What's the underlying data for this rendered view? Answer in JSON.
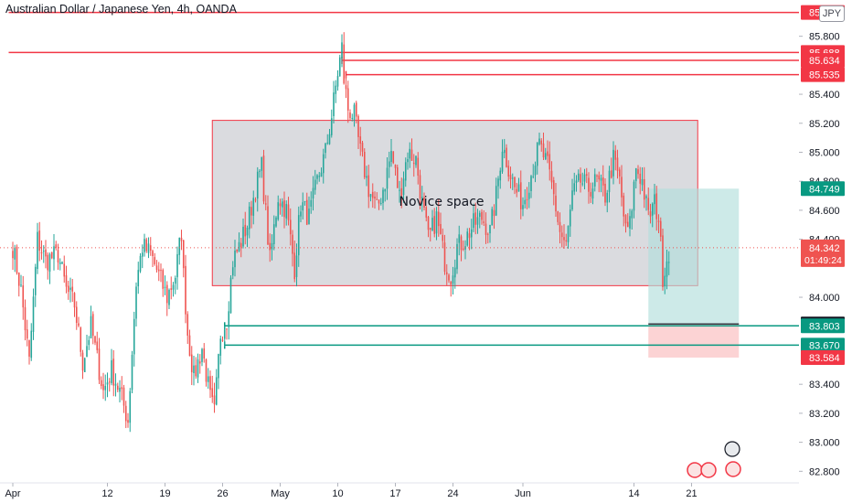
{
  "header": {
    "title": "Australian Dollar / Japanese Yen, 4h, OANDA",
    "currency": "JPY"
  },
  "colors": {
    "up": "#26a69a",
    "down": "#ef5350",
    "resistance": "#f23645",
    "support": "#089981",
    "zone_fill": "#d6d7dc",
    "zone_border": "#f23645",
    "target_fill": "#b2dfdb",
    "stop_fill": "#fccbcd",
    "last_price": "#ef5350"
  },
  "annotations": {
    "zone_label": "Novice space"
  },
  "countdown": "01:49:24",
  "chart_data": {
    "type": "candlestick",
    "instrument": "Australian Dollar / Japanese Yen",
    "timeframe": "4h",
    "source": "OANDA",
    "ylim": [
      82.72,
      86.05
    ],
    "y_ticks": [
      {
        "v": 85.8,
        "label": "85.800"
      },
      {
        "v": 85.4,
        "label": "85.400"
      },
      {
        "v": 85.2,
        "label": "85.200"
      },
      {
        "v": 85.0,
        "label": "85.000"
      },
      {
        "v": 84.8,
        "label": "84.800"
      },
      {
        "v": 84.6,
        "label": "84.600"
      },
      {
        "v": 84.4,
        "label": "84.400"
      },
      {
        "v": 84.0,
        "label": "84.000"
      },
      {
        "v": 83.4,
        "label": "83.400"
      },
      {
        "v": 83.2,
        "label": "83.200"
      },
      {
        "v": 83.0,
        "label": "83.000"
      },
      {
        "v": 82.8,
        "label": "82.800"
      }
    ],
    "x_ticks": [
      {
        "i": 0,
        "label": "Apr"
      },
      {
        "i": 46,
        "label": "12"
      },
      {
        "i": 74,
        "label": "19"
      },
      {
        "i": 102,
        "label": "26"
      },
      {
        "i": 130,
        "label": "May"
      },
      {
        "i": 158,
        "label": "10"
      },
      {
        "i": 186,
        "label": "17"
      },
      {
        "i": 214,
        "label": "24"
      },
      {
        "i": 248,
        "label": "Jun"
      },
      {
        "i": 302,
        "label": "14"
      },
      {
        "i": 330,
        "label": "21"
      }
    ],
    "price_labels": [
      {
        "v": 85.964,
        "label": "85.964",
        "kind": "resistance"
      },
      {
        "v": 85.688,
        "label": "85.688",
        "kind": "resistance"
      },
      {
        "v": 85.634,
        "label": "85.634",
        "kind": "resistance"
      },
      {
        "v": 85.535,
        "label": "85.535",
        "kind": "resistance"
      },
      {
        "v": 84.749,
        "label": "84.749",
        "kind": "target"
      },
      {
        "v": 84.342,
        "label": "84.342",
        "kind": "last"
      },
      {
        "v": 83.816,
        "label": "83.816",
        "kind": "entry"
      },
      {
        "v": 83.803,
        "label": "83.803",
        "kind": "support"
      },
      {
        "v": 83.67,
        "label": "83.670",
        "kind": "support"
      },
      {
        "v": 83.584,
        "label": "83.584",
        "kind": "stop"
      }
    ],
    "horizontal_lines": [
      {
        "v": 85.964,
        "from_i": -2,
        "kind": "resistance"
      },
      {
        "v": 85.688,
        "from_i": -2,
        "kind": "resistance"
      },
      {
        "v": 85.634,
        "from_i": 160,
        "kind": "resistance"
      },
      {
        "v": 85.535,
        "from_i": 162,
        "kind": "resistance"
      },
      {
        "v": 83.803,
        "from_i": 103,
        "kind": "support"
      },
      {
        "v": 83.67,
        "from_i": 103,
        "kind": "support"
      }
    ],
    "zone": {
      "from_i": 97,
      "to_i": 333,
      "top": 85.22,
      "bottom": 84.08
    },
    "position": {
      "from_i": 309,
      "to_i": 353,
      "entry": 83.816,
      "target": 84.749,
      "stop": 83.584
    },
    "last_price": 84.342,
    "anchors": [
      {
        "i": 0,
        "v": 84.35
      },
      {
        "i": 4,
        "v": 84.05
      },
      {
        "i": 8,
        "v": 83.55
      },
      {
        "i": 12,
        "v": 84.4
      },
      {
        "i": 16,
        "v": 84.25
      },
      {
        "i": 22,
        "v": 84.3
      },
      {
        "i": 26,
        "v": 84.05
      },
      {
        "i": 30,
        "v": 83.95
      },
      {
        "i": 34,
        "v": 83.55
      },
      {
        "i": 38,
        "v": 83.8
      },
      {
        "i": 44,
        "v": 83.35
      },
      {
        "i": 48,
        "v": 83.5
      },
      {
        "i": 52,
        "v": 83.35
      },
      {
        "i": 56,
        "v": 83.15
      },
      {
        "i": 60,
        "v": 84.1
      },
      {
        "i": 63,
        "v": 84.35
      },
      {
        "i": 67,
        "v": 84.3
      },
      {
        "i": 71,
        "v": 84.15
      },
      {
        "i": 75,
        "v": 84.0
      },
      {
        "i": 79,
        "v": 84.15
      },
      {
        "i": 82,
        "v": 84.45
      },
      {
        "i": 83,
        "v": 84.15
      },
      {
        "i": 85,
        "v": 83.75
      },
      {
        "i": 88,
        "v": 83.45
      },
      {
        "i": 92,
        "v": 83.65
      },
      {
        "i": 96,
        "v": 83.3
      },
      {
        "i": 98,
        "v": 83.2
      },
      {
        "i": 101,
        "v": 83.75
      },
      {
        "i": 104,
        "v": 83.85
      },
      {
        "i": 107,
        "v": 84.25
      },
      {
        "i": 110,
        "v": 84.35
      },
      {
        "i": 114,
        "v": 84.5
      },
      {
        "i": 118,
        "v": 84.75
      },
      {
        "i": 121,
        "v": 84.9
      },
      {
        "i": 125,
        "v": 84.25
      },
      {
        "i": 129,
        "v": 84.7
      },
      {
        "i": 133,
        "v": 84.6
      },
      {
        "i": 137,
        "v": 84.2
      },
      {
        "i": 140,
        "v": 84.65
      },
      {
        "i": 144,
        "v": 84.55
      },
      {
        "i": 148,
        "v": 84.8
      },
      {
        "i": 152,
        "v": 85.0
      },
      {
        "i": 155,
        "v": 85.25
      },
      {
        "i": 158,
        "v": 85.55
      },
      {
        "i": 160,
        "v": 85.72
      },
      {
        "i": 161,
        "v": 85.5
      },
      {
        "i": 163,
        "v": 85.3
      },
      {
        "i": 166,
        "v": 85.25
      },
      {
        "i": 169,
        "v": 85.0
      },
      {
        "i": 173,
        "v": 84.75
      },
      {
        "i": 177,
        "v": 84.6
      },
      {
        "i": 181,
        "v": 84.8
      },
      {
        "i": 184,
        "v": 85.0
      },
      {
        "i": 188,
        "v": 84.7
      },
      {
        "i": 192,
        "v": 85.0
      },
      {
        "i": 196,
        "v": 84.95
      },
      {
        "i": 199,
        "v": 84.65
      },
      {
        "i": 202,
        "v": 84.4
      },
      {
        "i": 206,
        "v": 84.55
      },
      {
        "i": 210,
        "v": 84.25
      },
      {
        "i": 213,
        "v": 84.15
      },
      {
        "i": 216,
        "v": 84.35
      },
      {
        "i": 220,
        "v": 84.4
      },
      {
        "i": 224,
        "v": 84.5
      },
      {
        "i": 228,
        "v": 84.55
      },
      {
        "i": 232,
        "v": 84.45
      },
      {
        "i": 235,
        "v": 84.7
      },
      {
        "i": 238,
        "v": 85.05
      },
      {
        "i": 241,
        "v": 84.9
      },
      {
        "i": 244,
        "v": 84.75
      },
      {
        "i": 248,
        "v": 84.65
      },
      {
        "i": 252,
        "v": 84.85
      },
      {
        "i": 256,
        "v": 85.05
      },
      {
        "i": 260,
        "v": 84.9
      },
      {
        "i": 263,
        "v": 84.7
      },
      {
        "i": 266,
        "v": 84.45
      },
      {
        "i": 269,
        "v": 84.35
      },
      {
        "i": 272,
        "v": 84.7
      },
      {
        "i": 276,
        "v": 84.8
      },
      {
        "i": 280,
        "v": 84.75
      },
      {
        "i": 284,
        "v": 84.8
      },
      {
        "i": 288,
        "v": 84.7
      },
      {
        "i": 292,
        "v": 84.95
      },
      {
        "i": 295,
        "v": 84.8
      },
      {
        "i": 298,
        "v": 84.45
      },
      {
        "i": 300,
        "v": 84.5
      },
      {
        "i": 303,
        "v": 84.9
      },
      {
        "i": 306,
        "v": 84.8
      },
      {
        "i": 309,
        "v": 84.55
      },
      {
        "i": 312,
        "v": 84.65
      },
      {
        "i": 314,
        "v": 84.55
      },
      {
        "i": 316,
        "v": 84.15
      },
      {
        "i": 319,
        "v": 84.32
      }
    ]
  }
}
